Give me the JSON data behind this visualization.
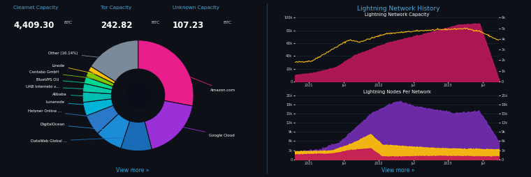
{
  "bg_color": "#0d1117",
  "text_color": "#c8d6e5",
  "cyan_color": "#29abe2",
  "title_color": "#4da6d9",
  "clearnet_label": "Clearnet Capacity",
  "clearnet_value": "4,409.30",
  "clearnet_unit": "BTC",
  "tor_label": "Tor Capacity",
  "tor_value": "242.82",
  "tor_unit": "BTC",
  "unknown_label": "Unknown Capacity",
  "unknown_value": "107.23",
  "unknown_unit": "BTC",
  "pie_values": [
    28,
    18,
    9,
    8,
    6,
    4,
    3,
    2.5,
    2,
    1.8,
    1.5,
    16.14
  ],
  "pie_colors": [
    "#e91e8c",
    "#9b30d9",
    "#1a6bb5",
    "#1a8cd8",
    "#2979c8",
    "#00b4d8",
    "#00bfb2",
    "#00c9a7",
    "#00d68f",
    "#7ec600",
    "#ffc107",
    "#7a8a9a"
  ],
  "ln_history_title": "Lightning Network History",
  "ln_capacity_title": "Lightning Network Capacity",
  "ln_nodes_title": "Lightning Nodes Per Network",
  "view_more": "View more »",
  "x_ticks": [
    "2021",
    "Jul",
    "2022",
    "Jul",
    "2023",
    "Jul"
  ]
}
